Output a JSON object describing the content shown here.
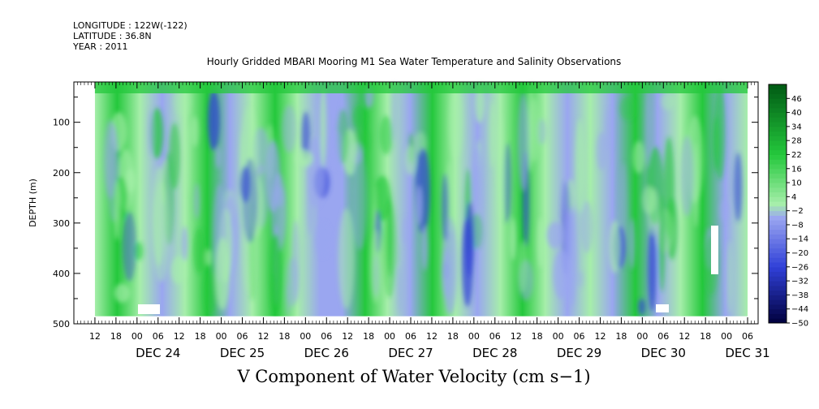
{
  "header": {
    "longitude": "LONGITUDE : 122W(-122)",
    "latitude": "LATITUDE : 36.8N",
    "year": "YEAR : 2011"
  },
  "chart_data": {
    "type": "heatmap",
    "title": "Hourly Gridded MBARI Mooring M1 Sea Water Temperature and Salinity Observations",
    "xlabel": "",
    "ylabel": "DEPTH (m)",
    "colorbar_label": "V Component of Water Velocity (cm s−1)",
    "x_range": [
      "2011-12-23T06:00",
      "2011-12-31T09:00"
    ],
    "data_x_range": [
      "2011-12-23T12:00",
      "2011-12-31T06:00"
    ],
    "ylim": [
      500,
      20
    ],
    "data_depth_range": [
      20,
      485
    ],
    "y_ticks": [
      100,
      200,
      300,
      400,
      500
    ],
    "y_tick_labels": [
      "100",
      "200",
      "300",
      "400",
      "500"
    ],
    "x_tick_hours": [
      "12",
      "18",
      "00",
      "06",
      "12",
      "18",
      "00",
      "06",
      "12",
      "18",
      "00",
      "06",
      "12",
      "18",
      "00",
      "06",
      "12",
      "18",
      "00",
      "06",
      "12",
      "18",
      "00",
      "06",
      "12",
      "18",
      "00",
      "06",
      "12",
      "18",
      "00",
      "06"
    ],
    "x_tick_start": "2011-12-23T12:00",
    "x_tick_step_hours": 6,
    "day_labels": [
      "DEC 24",
      "DEC 25",
      "DEC 26",
      "DEC 27",
      "DEC 28",
      "DEC 29",
      "DEC 30",
      "DEC 31"
    ],
    "colorbar_levels": [
      46,
      40,
      34,
      28,
      22,
      16,
      10,
      4,
      -2,
      -8,
      -14,
      -20,
      -26,
      -32,
      -38,
      -44,
      -50
    ],
    "colorbar_range": [
      -50,
      52
    ],
    "colorbar_colors": {
      "dark_navy": "#00003c",
      "blue": "#3040d8",
      "periwinkle": "#9aa6f0",
      "light_green": "#a6eeaa",
      "green": "#24c83c",
      "dark_green": "#005a14"
    }
  }
}
